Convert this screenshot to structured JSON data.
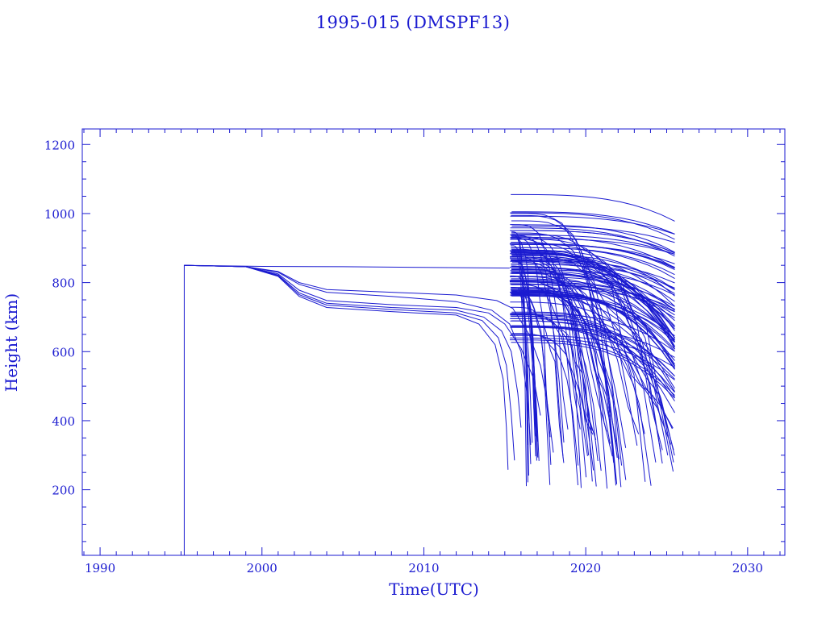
{
  "colors": {
    "ink": "#1a1ad0",
    "background": "#ffffff"
  },
  "chart_data": {
    "type": "line",
    "title": "1995-015 (DMSPF13)",
    "xlabel": "Time(UTC)",
    "ylabel": "Height (km)",
    "xlim": [
      1988.9,
      2032.3
    ],
    "ylim": [
      10,
      1245
    ],
    "x_ticks": [
      1990,
      2000,
      2010,
      2020,
      2030
    ],
    "x_tick_labels": [
      "1990",
      "2000",
      "2010",
      "2020",
      "2030"
    ],
    "y_ticks": [
      200,
      400,
      600,
      800,
      1000,
      1200
    ],
    "y_tick_labels": [
      "200",
      "400",
      "600",
      "800",
      "1000",
      "1200"
    ],
    "grid": false,
    "legend": "none",
    "parent": {
      "name": "1995-015 (DMSPF13)",
      "points": [
        [
          1995.2,
          10
        ],
        [
          1995.2,
          850
        ],
        [
          2000,
          847
        ],
        [
          2005,
          846
        ],
        [
          2010,
          844
        ],
        [
          2015.3,
          842
        ]
      ]
    },
    "early_debris": [
      {
        "points": [
          [
            1995.2,
            850
          ],
          [
            1999,
            846
          ],
          [
            2001,
            832
          ],
          [
            2002.3,
            800
          ],
          [
            2004,
            780
          ],
          [
            2008,
            772
          ],
          [
            2012,
            764
          ],
          [
            2014.5,
            748
          ],
          [
            2015.5,
            725
          ],
          [
            2016.5,
            650
          ],
          [
            2017.2,
            560
          ],
          [
            2017.6,
            460
          ],
          [
            2018,
            308
          ]
        ]
      },
      {
        "points": [
          [
            1995.2,
            850
          ],
          [
            1999,
            846
          ],
          [
            2001,
            825
          ],
          [
            2002.3,
            778
          ],
          [
            2004,
            748
          ],
          [
            2008,
            736
          ],
          [
            2012,
            728
          ],
          [
            2014,
            712
          ],
          [
            2015,
            680
          ],
          [
            2016,
            610
          ],
          [
            2016.8,
            520
          ],
          [
            2017.2,
            415
          ]
        ]
      },
      {
        "points": [
          [
            1995.2,
            850
          ],
          [
            1999,
            846
          ],
          [
            2001,
            822
          ],
          [
            2002.3,
            770
          ],
          [
            2004,
            740
          ],
          [
            2008,
            728
          ],
          [
            2012,
            720
          ],
          [
            2013.7,
            700
          ],
          [
            2014.8,
            660
          ],
          [
            2015.4,
            600
          ],
          [
            2015.8,
            480
          ],
          [
            2016,
            380
          ]
        ]
      },
      {
        "points": [
          [
            1995.2,
            850
          ],
          [
            1999,
            846
          ],
          [
            2001,
            820
          ],
          [
            2002.3,
            765
          ],
          [
            2004,
            735
          ],
          [
            2008,
            722
          ],
          [
            2012,
            712
          ],
          [
            2013.6,
            690
          ],
          [
            2014.6,
            640
          ],
          [
            2015.1,
            560
          ],
          [
            2015.4,
            420
          ],
          [
            2015.6,
            285
          ]
        ]
      },
      {
        "points": [
          [
            1995.2,
            850
          ],
          [
            1999,
            846
          ],
          [
            2001,
            818
          ],
          [
            2002.3,
            760
          ],
          [
            2004,
            728
          ],
          [
            2008,
            716
          ],
          [
            2012,
            706
          ],
          [
            2013.4,
            680
          ],
          [
            2014.4,
            620
          ],
          [
            2014.9,
            520
          ],
          [
            2015.1,
            380
          ],
          [
            2015.2,
            258
          ]
        ]
      },
      {
        "points": [
          [
            1995.2,
            850
          ],
          [
            1999,
            846
          ],
          [
            2001,
            830
          ],
          [
            2002.3,
            795
          ],
          [
            2004,
            772
          ],
          [
            2008,
            760
          ],
          [
            2012,
            745
          ],
          [
            2014.2,
            720
          ],
          [
            2015.3,
            680
          ],
          [
            2016,
            600
          ],
          [
            2016.4,
            470
          ],
          [
            2016.6,
            330
          ]
        ]
      }
    ],
    "fragment_cloud": {
      "breakup_year": 2015.3,
      "end_year": 2025.5,
      "count": 150,
      "initial_height_range": [
        600,
        1055
      ],
      "lowest_decay_height": 200
    }
  }
}
